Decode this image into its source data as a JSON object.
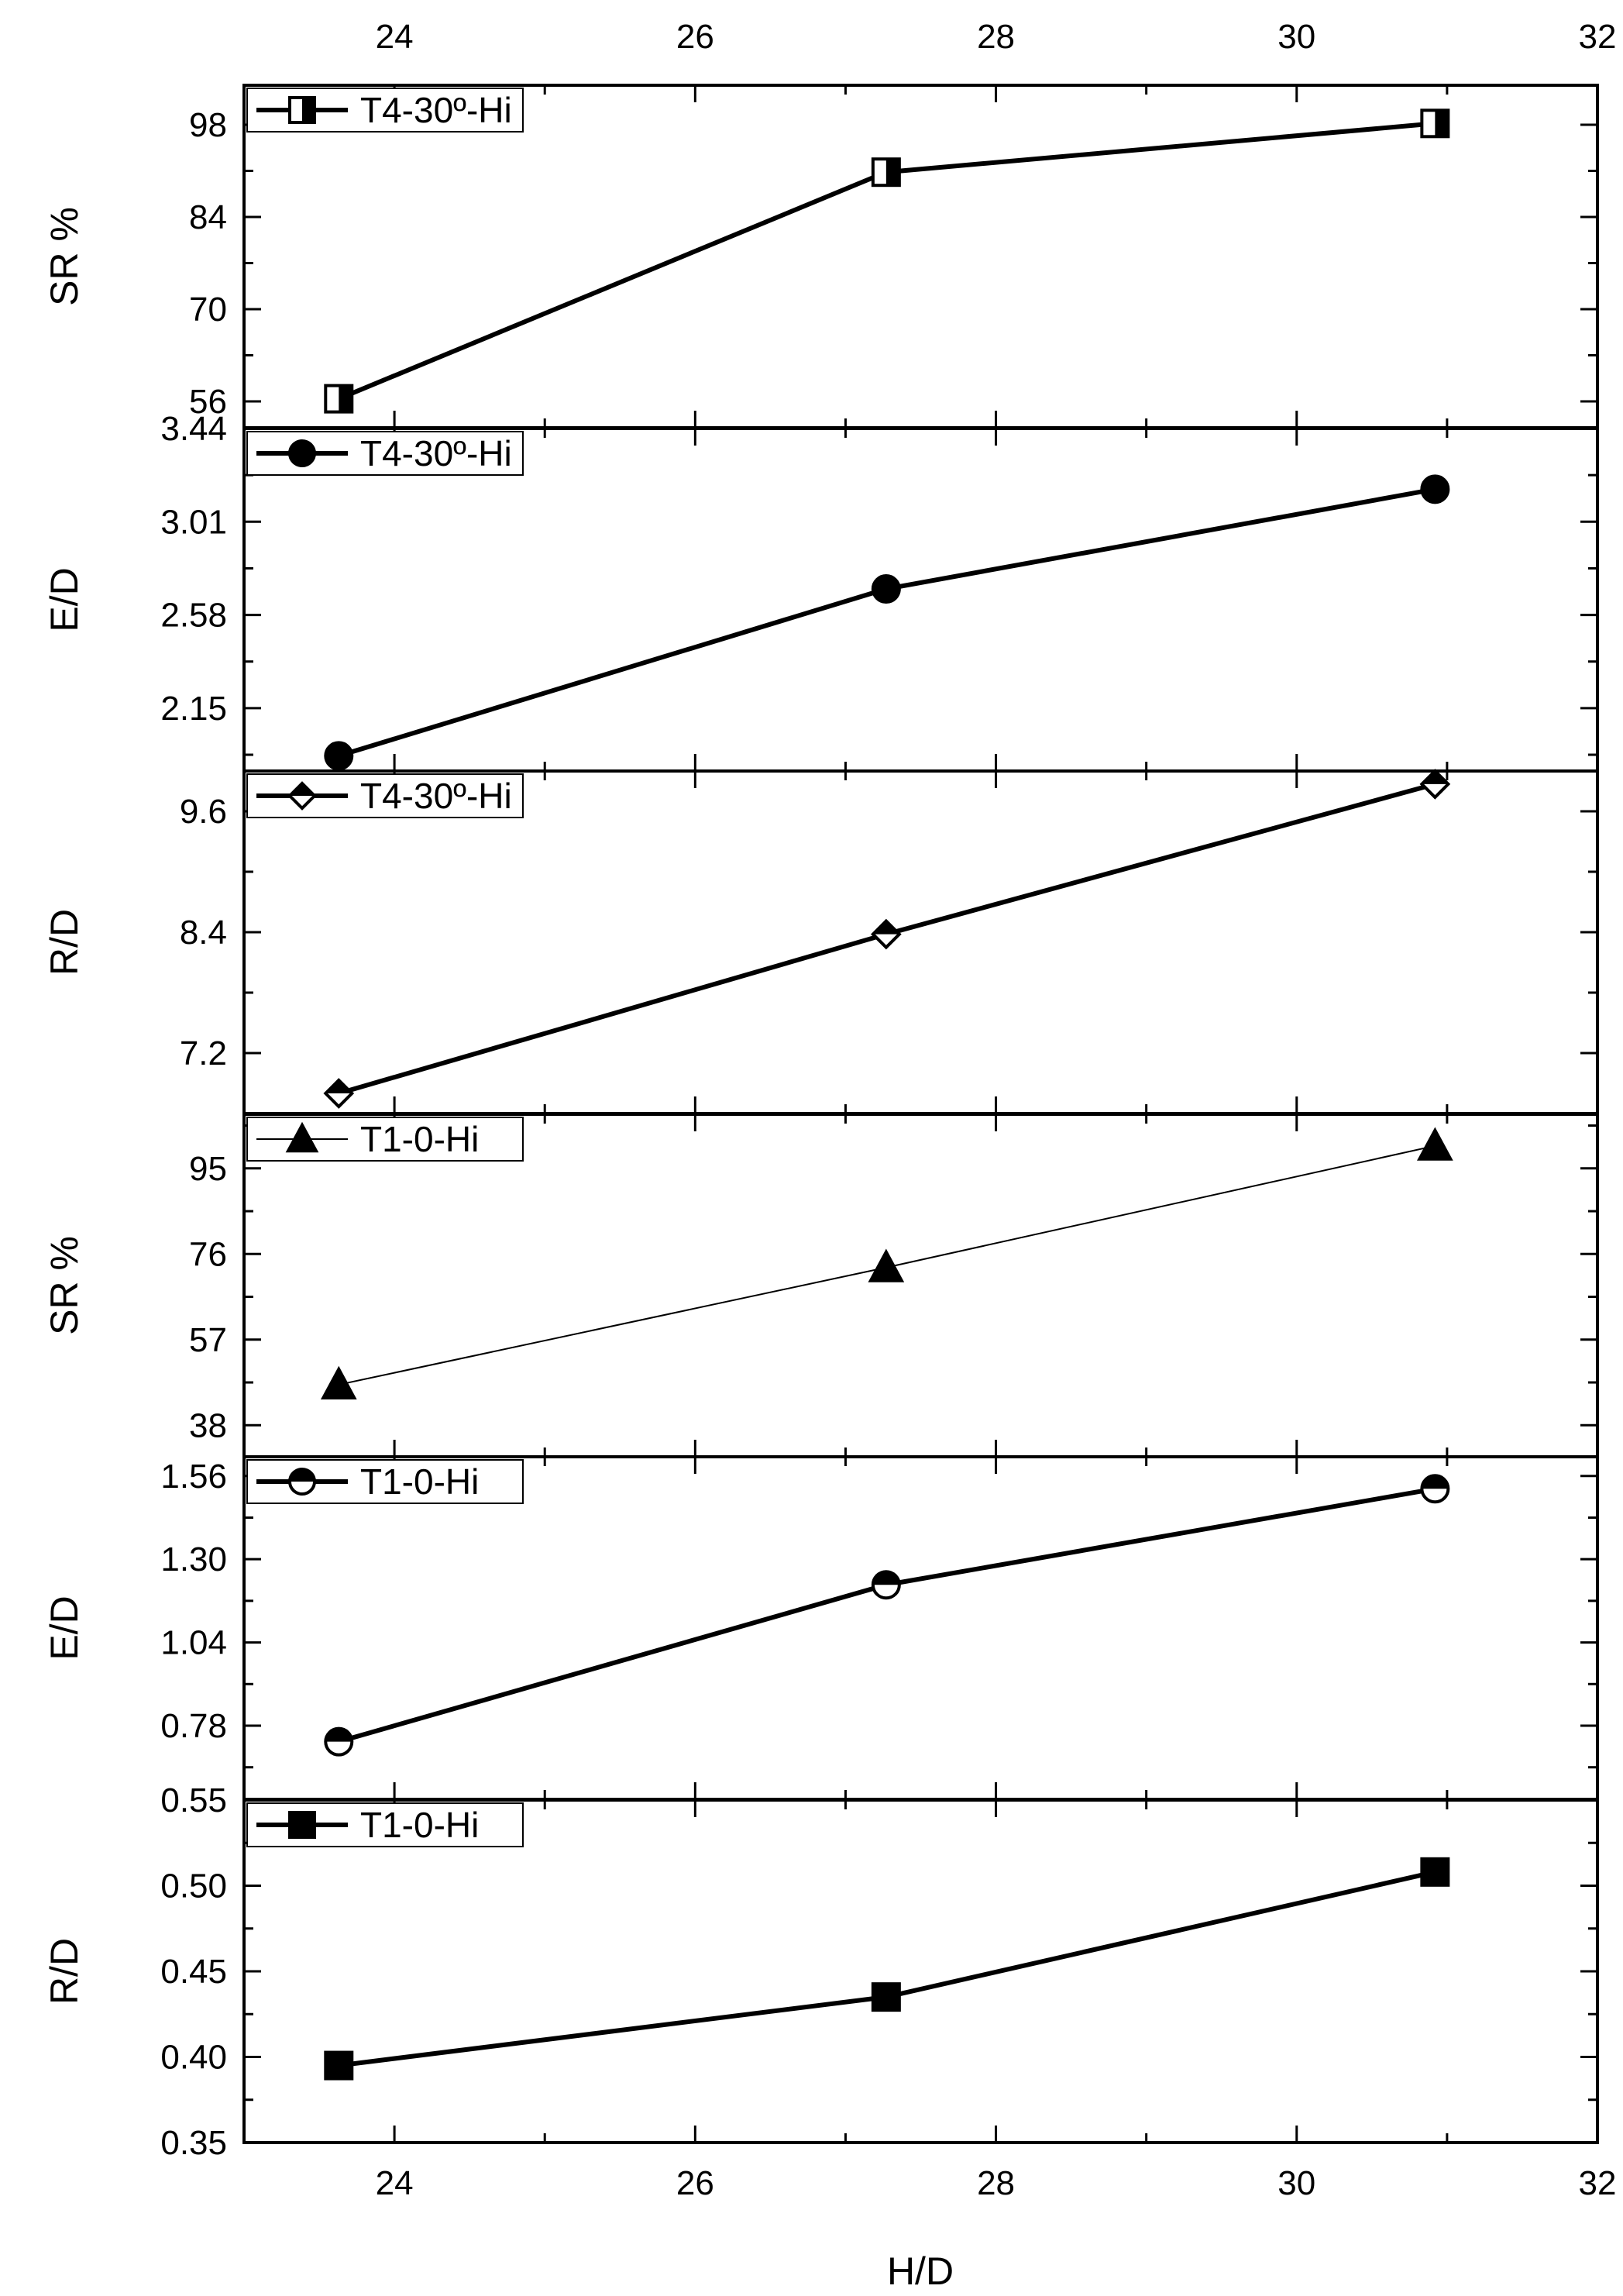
{
  "chart_data": [
    {
      "type": "line",
      "x": [
        23.63,
        27.27,
        30.92
      ],
      "series": [
        {
          "name": "T4-30º-Hi",
          "values": [
            56.4,
            90.8,
            98.2
          ],
          "marker": "square-half-right"
        }
      ],
      "ylabel": "SR %",
      "yticks": [
        "56",
        "70",
        "84",
        "98"
      ],
      "ylim": [
        52,
        104
      ],
      "legend_position": "top-left"
    },
    {
      "type": "line",
      "x": [
        23.63,
        27.27,
        30.92
      ],
      "series": [
        {
          "name": "T4-30º-Hi",
          "values": [
            1.93,
            2.7,
            3.16
          ],
          "marker": "circle-filled"
        }
      ],
      "ylabel": "E/D",
      "yticks": [
        "2.15",
        "2.58",
        "3.01",
        "3.44"
      ],
      "ylim": [
        1.86,
        3.44
      ],
      "legend_position": "top-left"
    },
    {
      "type": "line",
      "x": [
        23.63,
        27.27,
        30.92
      ],
      "series": [
        {
          "name": "T4-30º-Hi",
          "values": [
            6.8,
            8.38,
            9.87
          ],
          "marker": "diamond-top-filled"
        }
      ],
      "ylabel": "R/D",
      "yticks": [
        "7.2",
        "8.4",
        "9.6"
      ],
      "ylim": [
        6.6,
        10.0
      ],
      "legend_position": "top-left"
    },
    {
      "type": "line",
      "x": [
        23.63,
        27.27,
        30.92
      ],
      "series": [
        {
          "name": "T1-0-Hi",
          "values": [
            47.0,
            73.0,
            100.0
          ],
          "marker": "triangle-filled"
        }
      ],
      "ylabel": "SR %",
      "yticks": [
        "38",
        "57",
        "76",
        "95"
      ],
      "ylim": [
        31,
        107
      ],
      "legend_position": "top-left"
    },
    {
      "type": "line",
      "x": [
        23.63,
        27.27,
        30.92
      ],
      "series": [
        {
          "name": "T1-0-Hi",
          "values": [
            0.73,
            1.22,
            1.52
          ],
          "marker": "circle-half-top"
        }
      ],
      "ylabel": "E/D",
      "yticks": [
        "0.78",
        "1.04",
        "1.30",
        "1.56"
      ],
      "ylim": [
        0.55,
        1.62
      ],
      "legend_position": "top-left"
    },
    {
      "type": "line",
      "x": [
        23.63,
        27.27,
        30.92
      ],
      "series": [
        {
          "name": "T1-0-Hi",
          "values": [
            0.395,
            0.435,
            0.508
          ],
          "marker": "square-filled"
        }
      ],
      "ylabel": "R/D",
      "yticks": [
        "0.35",
        "0.40",
        "0.45",
        "0.50",
        "0.55"
      ],
      "ylim": [
        0.35,
        0.55
      ],
      "legend_position": "top-left"
    }
  ],
  "x_axis": {
    "label": "H/D",
    "ticks": [
      "24",
      "26",
      "28",
      "30",
      "32"
    ],
    "xlim": [
      23,
      32
    ]
  }
}
